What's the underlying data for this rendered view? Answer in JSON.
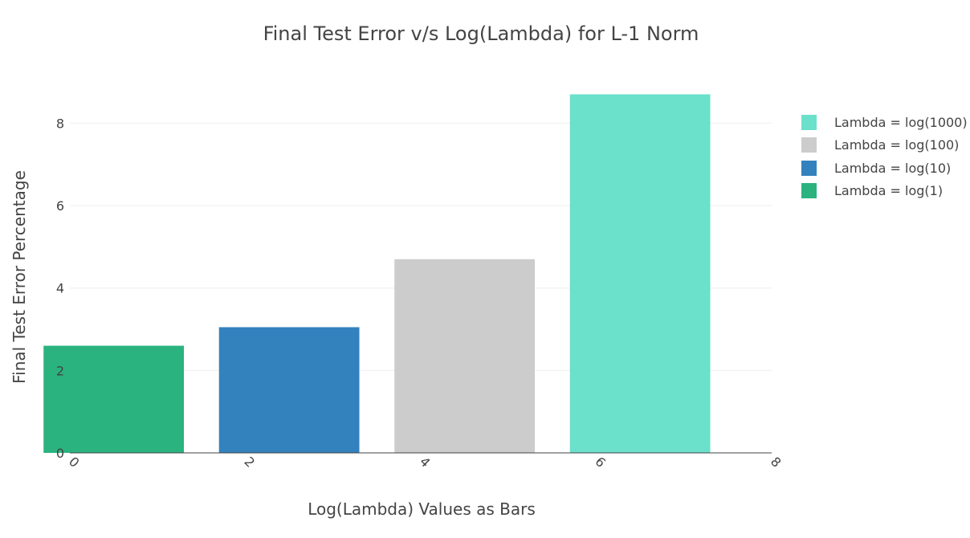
{
  "chart_data": {
    "type": "bar",
    "title": "Final Test Error v/s Log(Lambda) for L-1 Norm",
    "xlabel": "Log(Lambda) Values as Bars",
    "ylabel": "Final Test Error Percentage",
    "xlim": [
      -0.5,
      7.5
    ],
    "ylim": [
      0,
      8.3
    ],
    "x_ticks": [
      "0",
      "2",
      "4",
      "6",
      "8"
    ],
    "y_ticks": [
      "0",
      "2",
      "4",
      "6",
      "8"
    ],
    "grid": true,
    "legend_position": "top-right",
    "series": [
      {
        "name": "Lambda = log(1)",
        "x": 0,
        "value": 2.6,
        "color": "#2ab37f"
      },
      {
        "name": "Lambda = log(10)",
        "x": 2,
        "value": 3.05,
        "color": "#3382be"
      },
      {
        "name": "Lambda = log(100)",
        "x": 4,
        "value": 4.7,
        "color": "#cccccc"
      },
      {
        "name": "Lambda = log(1000)",
        "x": 6,
        "value": 8.7,
        "color": "#6be0cb"
      }
    ],
    "legend_order": [
      "Lambda = log(1000)",
      "Lambda = log(100)",
      "Lambda = log(10)",
      "Lambda = log(1)"
    ]
  }
}
